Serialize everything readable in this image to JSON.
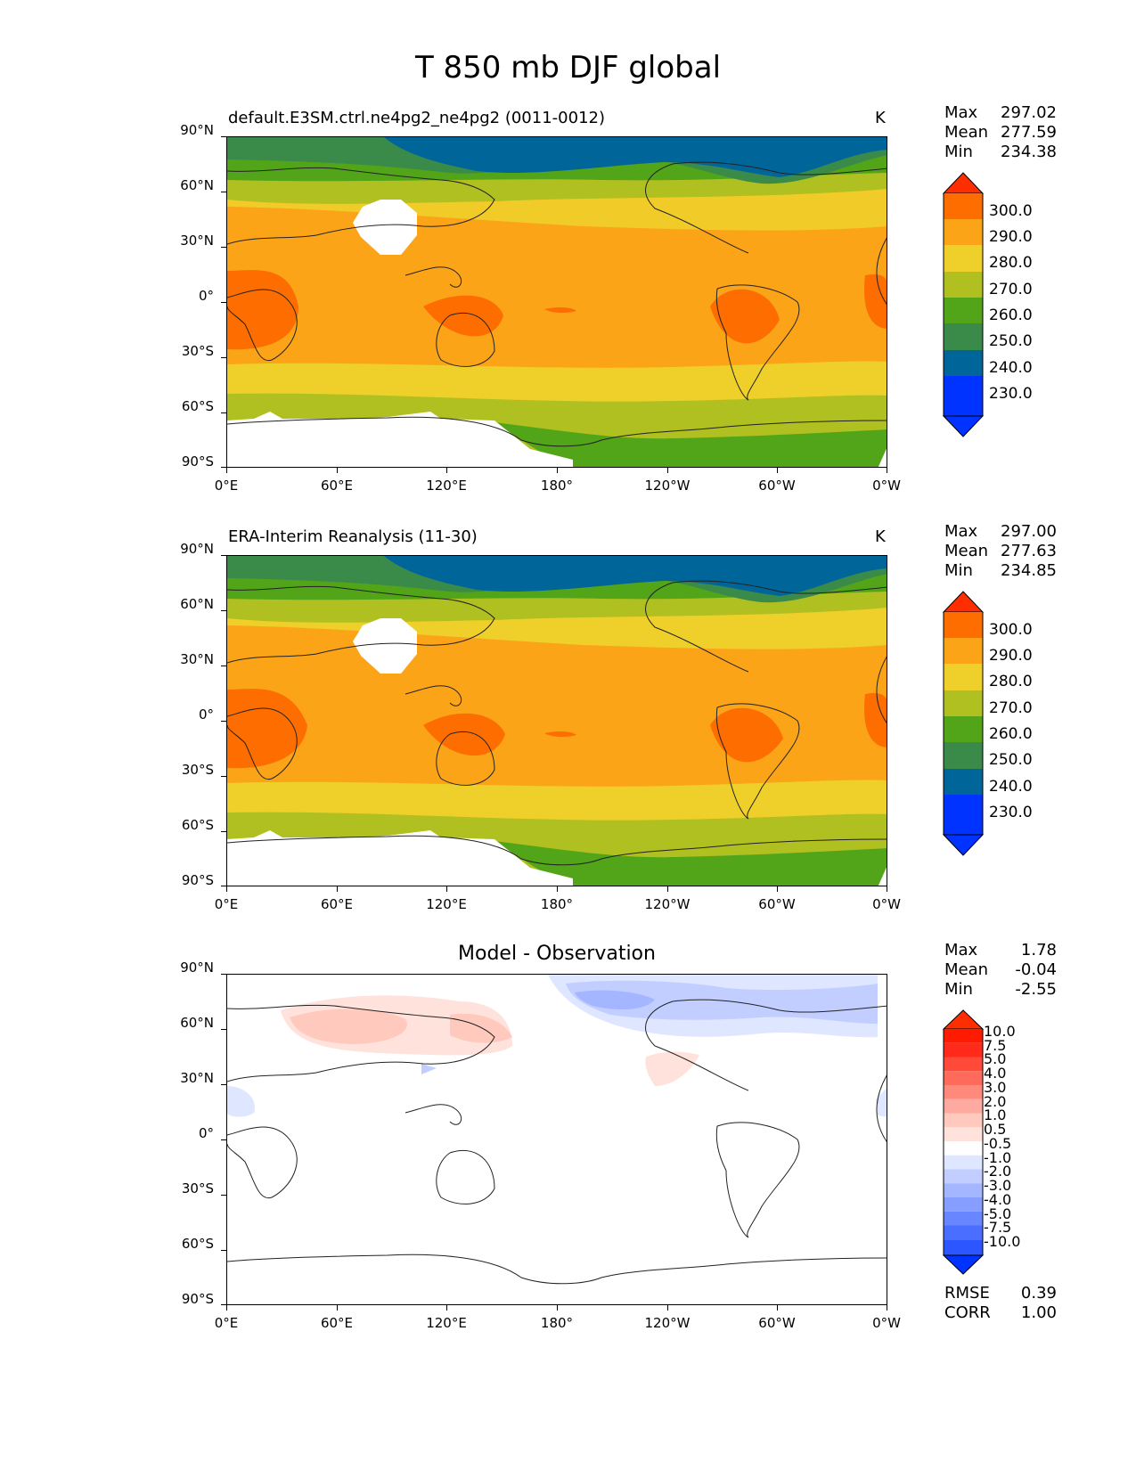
{
  "figure_title": "T 850 mb DJF global",
  "xticks": [
    "0°E",
    "60°E",
    "120°E",
    "180°",
    "120°W",
    "60°W",
    "0°W"
  ],
  "yticks": [
    "90°N",
    "60°N",
    "30°N",
    "0°",
    "30°S",
    "60°S",
    "90°S"
  ],
  "colors": {
    "fill_levels": [
      "#0033ff",
      "#006699",
      "#3a8a4a",
      "#52a518",
      "#b0c020",
      "#efcf2a",
      "#fca418",
      "#fd6d00",
      "#ff2e00"
    ],
    "diff_pos": [
      "#ffe2dc",
      "#ffc9be",
      "#ffaaa0",
      "#ff8a7c",
      "#ff6a5a",
      "#ff4a3a",
      "#ff2a1a",
      "#ff1a00"
    ],
    "diff_neg": [
      "#dfe6ff",
      "#c2ceff",
      "#a4b6ff",
      "#869eff",
      "#6886ff",
      "#4a6eff",
      "#2c56ff",
      "#0033ff"
    ]
  },
  "panels": [
    {
      "title": "default.E3SM.ctrl.ne4pg2_ne4pg2 (0011-0012)",
      "units": "K",
      "stats": {
        "max_label": "Max",
        "max": "297.02",
        "mean_label": "Mean",
        "mean": "277.59",
        "min_label": "Min",
        "min": "234.38"
      },
      "colorbar_labels": [
        "300.0",
        "290.0",
        "280.0",
        "270.0",
        "260.0",
        "250.0",
        "240.0",
        "230.0"
      ]
    },
    {
      "title": "ERA-Interim Reanalysis (11-30)",
      "units": "K",
      "stats": {
        "max_label": "Max",
        "max": "297.00",
        "mean_label": "Mean",
        "mean": "277.63",
        "min_label": "Min",
        "min": "234.85"
      },
      "colorbar_labels": [
        "300.0",
        "290.0",
        "280.0",
        "270.0",
        "260.0",
        "250.0",
        "240.0",
        "230.0"
      ]
    },
    {
      "title": "Model - Observation",
      "stats": {
        "max_label": "Max",
        "max": "1.78",
        "mean_label": "Mean",
        "mean": "-0.04",
        "min_label": "Min",
        "min": "-2.55"
      },
      "colorbar_labels": [
        "10.0",
        "7.5",
        "5.0",
        "4.0",
        "3.0",
        "2.0",
        "1.0",
        "0.5",
        "-0.5",
        "-1.0",
        "-2.0",
        "-3.0",
        "-4.0",
        "-5.0",
        "-7.5",
        "-10.0"
      ],
      "metrics": {
        "rmse_label": "RMSE",
        "rmse": "0.39",
        "corr_label": "CORR",
        "corr": "1.00"
      }
    }
  ]
}
